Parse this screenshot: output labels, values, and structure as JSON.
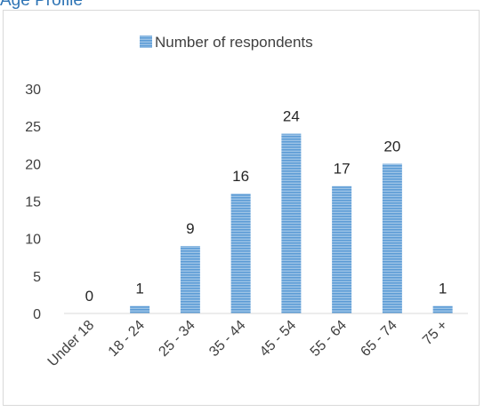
{
  "page": {
    "title": "Age Profile"
  },
  "chart_data": {
    "type": "bar",
    "title": "",
    "xlabel": "",
    "ylabel": "",
    "categories": [
      "Under 18",
      "18 - 24",
      "25 - 34",
      "35 - 44",
      "45 - 54",
      "55 - 64",
      "65 - 74",
      "75 +"
    ],
    "series": [
      {
        "name": "Number of respondents",
        "values": [
          0,
          1,
          9,
          16,
          24,
          17,
          20,
          1
        ]
      }
    ],
    "ylim": [
      0,
      30
    ],
    "yticks": [
      0,
      5,
      10,
      15,
      20,
      25,
      30
    ],
    "grid": false,
    "legend": "top",
    "data_labels": true,
    "bar_color": "#5b9bd5",
    "bar_pattern": "horizontal-stripes"
  }
}
